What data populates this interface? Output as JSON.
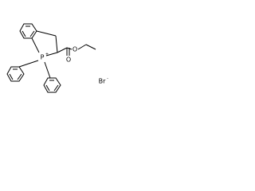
{
  "atoms": [
    "P",
    "O",
    "O",
    "Br"
  ],
  "charges": [
    "+",
    "-"
  ]
}
